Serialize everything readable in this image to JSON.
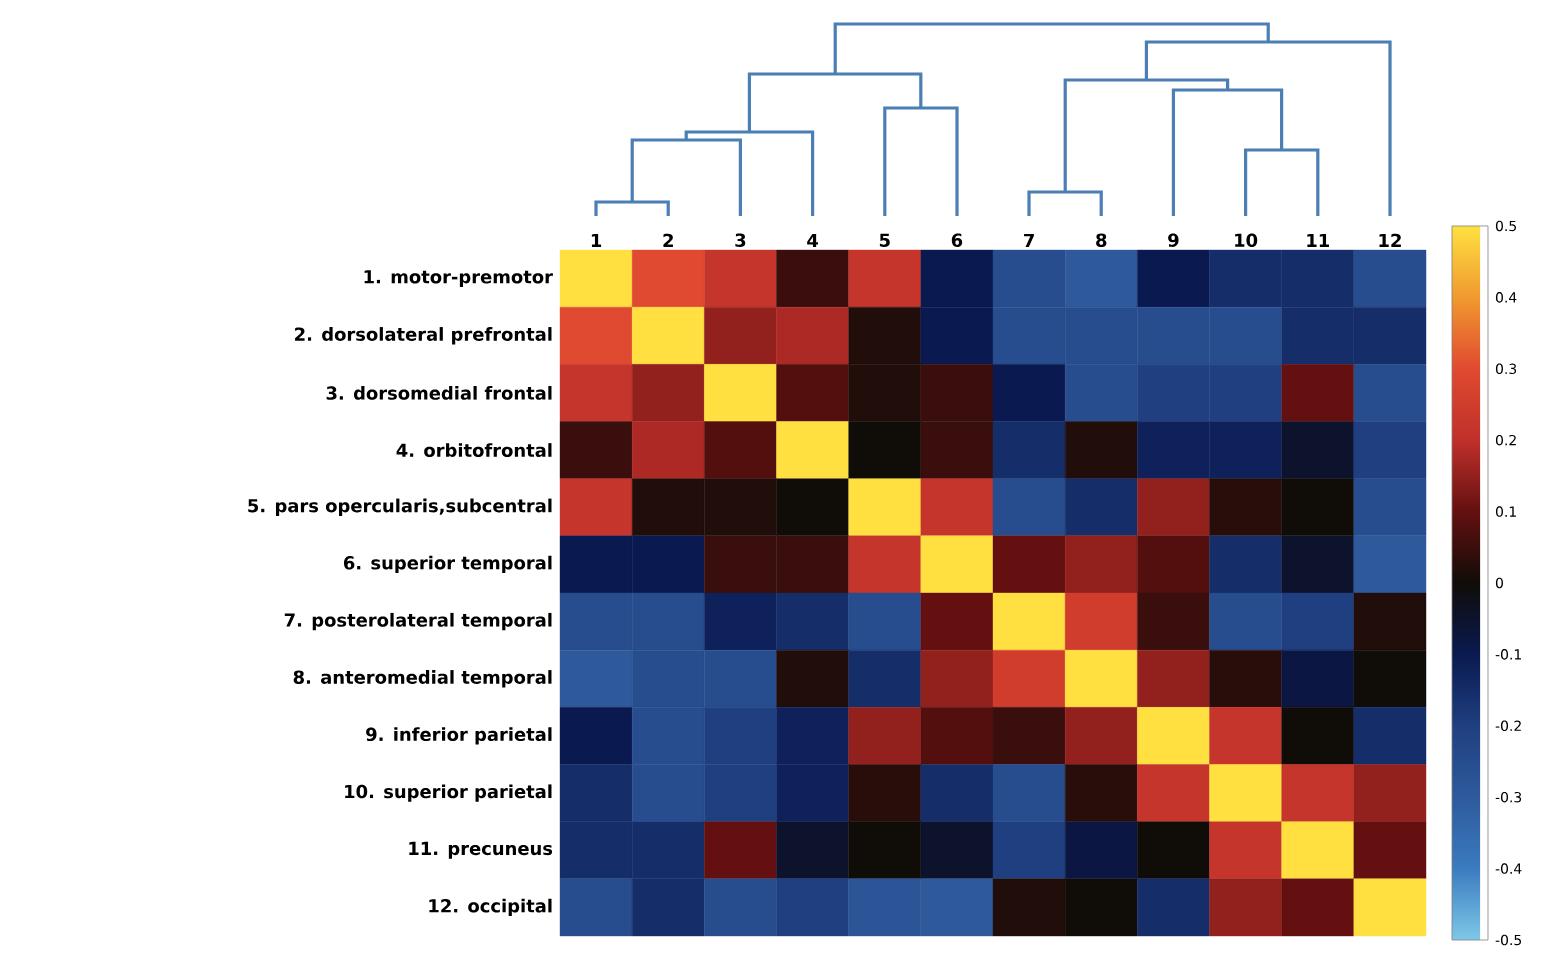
{
  "chart_data": {
    "type": "heatmap",
    "categories": [
      "1",
      "2",
      "3",
      "4",
      "5",
      "6",
      "7",
      "8",
      "9",
      "10",
      "11",
      "12"
    ],
    "y_categories": [
      "1. motor-premotor",
      "2. dorsolateral prefrontal",
      "3. dorsomedial frontal",
      "4. orbitofrontal",
      "5. pars opercularis,subcentral",
      "6. superior temporal",
      "7. posterolateral temporal",
      "8. anteromedial temporal",
      "9. inferior parietal",
      "10. superior parietal",
      "11. precuneus",
      "12. occipital"
    ],
    "cells": [
      [
        0.5,
        0.3,
        0.22,
        0.05,
        0.22,
        -0.1,
        -0.25,
        -0.3,
        -0.1,
        -0.15,
        -0.15,
        -0.25
      ],
      [
        0.3,
        0.5,
        0.15,
        0.18,
        0.02,
        -0.1,
        -0.25,
        -0.25,
        -0.25,
        -0.25,
        -0.15,
        -0.15
      ],
      [
        0.22,
        0.15,
        0.5,
        0.08,
        0.02,
        0.05,
        -0.1,
        -0.25,
        -0.2,
        -0.2,
        0.1,
        -0.25
      ],
      [
        0.05,
        0.18,
        0.08,
        0.5,
        0.0,
        0.05,
        -0.15,
        0.02,
        -0.12,
        -0.12,
        -0.05,
        -0.2
      ],
      [
        0.22,
        0.02,
        0.02,
        0.0,
        0.5,
        0.22,
        -0.25,
        -0.15,
        0.15,
        0.03,
        0.0,
        -0.25
      ],
      [
        -0.1,
        -0.1,
        0.05,
        0.05,
        0.22,
        0.5,
        0.1,
        0.15,
        0.08,
        -0.15,
        -0.05,
        -0.3
      ],
      [
        -0.25,
        -0.25,
        -0.12,
        -0.15,
        -0.25,
        0.1,
        0.5,
        0.25,
        0.05,
        -0.25,
        -0.2,
        0.02
      ],
      [
        -0.3,
        -0.25,
        -0.25,
        0.02,
        -0.15,
        0.15,
        0.25,
        0.5,
        0.15,
        0.03,
        -0.08,
        0.0
      ],
      [
        -0.1,
        -0.25,
        -0.2,
        -0.12,
        0.15,
        0.08,
        0.05,
        0.15,
        0.5,
        0.22,
        0.0,
        -0.15
      ],
      [
        -0.15,
        -0.25,
        -0.2,
        -0.12,
        0.03,
        -0.15,
        -0.25,
        0.03,
        0.22,
        0.5,
        0.22,
        0.15
      ],
      [
        -0.15,
        -0.15,
        0.1,
        -0.05,
        0.0,
        -0.05,
        -0.2,
        -0.08,
        0.0,
        0.22,
        0.5,
        0.1
      ],
      [
        -0.25,
        -0.15,
        -0.25,
        -0.2,
        -0.28,
        -0.3,
        0.02,
        0.0,
        -0.15,
        0.15,
        0.1,
        0.5
      ]
    ],
    "clim": [
      -0.5,
      0.5
    ],
    "cticks": [
      -0.5,
      -0.4,
      -0.3,
      -0.2,
      -0.1,
      0,
      0.1,
      0.2,
      0.3,
      0.4,
      0.5
    ]
  }
}
